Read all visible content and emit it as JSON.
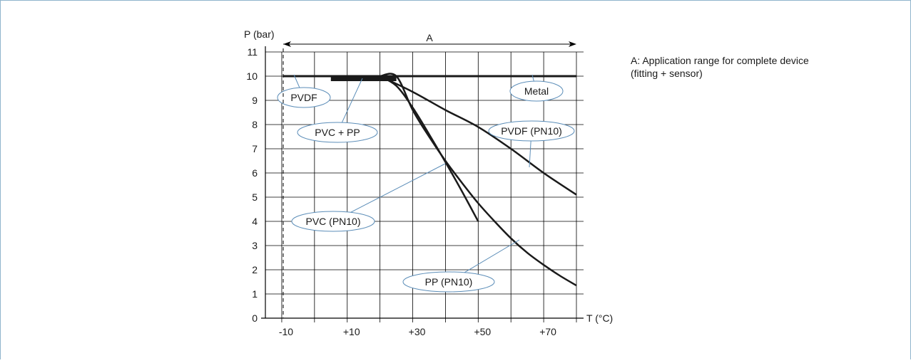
{
  "chart_data": {
    "type": "line",
    "ylabel": "P (bar)",
    "xlabel": "T (°C)",
    "x_tick_labels": [
      "-10",
      "+10",
      "+30",
      "+50",
      "+70"
    ],
    "x_ticks": [
      -10,
      10,
      30,
      50,
      70
    ],
    "y_ticks": [
      0,
      1,
      2,
      3,
      4,
      5,
      6,
      7,
      8,
      9,
      10,
      11
    ],
    "xlim": [
      -15,
      80
    ],
    "ylim": [
      0,
      11
    ],
    "grid": true,
    "range_label": "A",
    "range": [
      -15,
      80
    ],
    "note": [
      "A: Application range for complete device",
      "(fitting + sensor)"
    ],
    "series": [
      {
        "name": "Metal",
        "x": [
          -15,
          80
        ],
        "y": [
          10,
          10
        ]
      },
      {
        "name": "PVDF",
        "x": [
          -15,
          80
        ],
        "y": [
          10,
          10
        ]
      },
      {
        "name": "PVC + PP",
        "x": [
          5,
          25
        ],
        "y": [
          10,
          10
        ]
      },
      {
        "name": "PVDF (PN10)",
        "x": [
          20,
          30,
          40,
          50,
          60,
          70,
          80
        ],
        "y": [
          10,
          9.35,
          8.6,
          7.9,
          7.0,
          6.0,
          5.1
        ]
      },
      {
        "name": "PVC (PN10)",
        "x": [
          20,
          25,
          30,
          35,
          40,
          45,
          50
        ],
        "y": [
          10,
          9.6,
          8.7,
          7.6,
          6.45,
          5.25,
          4.0
        ]
      },
      {
        "name": "PP (PN10)",
        "x": [
          20,
          25,
          30,
          35,
          40,
          45,
          50,
          55,
          60,
          65,
          70,
          75,
          80
        ],
        "y": [
          10,
          10,
          8.6,
          7.5,
          6.5,
          5.6,
          4.75,
          4.0,
          3.3,
          2.7,
          2.2,
          1.75,
          1.35
        ]
      }
    ]
  }
}
